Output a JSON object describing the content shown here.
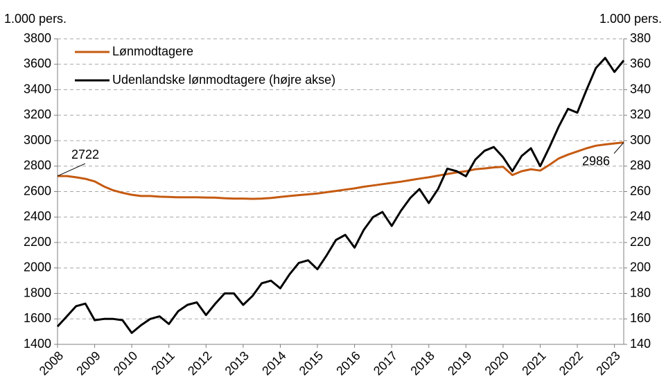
{
  "chart_data": {
    "type": "line",
    "y_label": "1.000 pers.",
    "y2_label": "1.000 pers.",
    "x": [
      2008,
      2008.25,
      2008.5,
      2008.75,
      2009,
      2009.25,
      2009.5,
      2009.75,
      2010,
      2010.25,
      2010.5,
      2010.75,
      2011,
      2011.25,
      2011.5,
      2011.75,
      2012,
      2012.25,
      2012.5,
      2012.75,
      2013,
      2013.25,
      2013.5,
      2013.75,
      2014,
      2014.25,
      2014.5,
      2014.75,
      2015,
      2015.25,
      2015.5,
      2015.75,
      2016,
      2016.25,
      2016.5,
      2016.75,
      2017,
      2017.25,
      2017.5,
      2017.75,
      2018,
      2018.25,
      2018.5,
      2018.75,
      2019,
      2019.25,
      2019.5,
      2019.75,
      2020,
      2020.25,
      2020.5,
      2020.75,
      2021,
      2021.25,
      2021.5,
      2021.75,
      2022,
      2022.25,
      2022.5,
      2022.75,
      2023,
      2023.25
    ],
    "series": [
      {
        "name": "Lønmodtagere",
        "color": "#c55a11",
        "values": [
          2722,
          2722,
          2712,
          2700,
          2680,
          2640,
          2610,
          2590,
          2575,
          2565,
          2565,
          2560,
          2558,
          2555,
          2555,
          2555,
          2553,
          2552,
          2548,
          2545,
          2545,
          2543,
          2545,
          2550,
          2558,
          2565,
          2572,
          2578,
          2585,
          2595,
          2605,
          2615,
          2625,
          2638,
          2648,
          2658,
          2668,
          2678,
          2690,
          2702,
          2712,
          2725,
          2738,
          2750,
          2760,
          2775,
          2782,
          2790,
          2795,
          2730,
          2760,
          2775,
          2765,
          2810,
          2860,
          2890,
          2915,
          2940,
          2960,
          2970,
          2978,
          2986
        ]
      },
      {
        "name": "Udenlandske lønmodtagere (højre akse)",
        "color": "#000000",
        "axis": "y2",
        "values": [
          154,
          162,
          170,
          172,
          159,
          160,
          160,
          159,
          149,
          155,
          160,
          162,
          156,
          166,
          171,
          173,
          163,
          172,
          180,
          180,
          171,
          178,
          188,
          190,
          184,
          195,
          204,
          206,
          199,
          210,
          222,
          226,
          216,
          230,
          240,
          244,
          233,
          245,
          255,
          262,
          251,
          262,
          278,
          276,
          272,
          285,
          292,
          295,
          287,
          276,
          288,
          294,
          280,
          295,
          311,
          325,
          322,
          340,
          357,
          365,
          354,
          363
        ]
      }
    ],
    "annotations": [
      {
        "text": "2722",
        "x": 2008,
        "y": 2722
      },
      {
        "text": "2986",
        "x": 2023.25,
        "y": 2986
      }
    ],
    "xlim": [
      2008,
      2023.25
    ],
    "xticks": [
      2008,
      2009,
      2010,
      2011,
      2012,
      2013,
      2014,
      2015,
      2016,
      2017,
      2018,
      2019,
      2020,
      2021,
      2022,
      2023
    ],
    "ylim": [
      1400,
      3800
    ],
    "yticks": [
      1400,
      1600,
      1800,
      2000,
      2200,
      2400,
      2600,
      2800,
      3000,
      3200,
      3400,
      3600,
      3800
    ],
    "y2lim": [
      140,
      380
    ],
    "y2ticks": [
      140,
      160,
      180,
      200,
      220,
      240,
      260,
      280,
      300,
      320,
      340,
      360,
      380
    ],
    "grid": true,
    "legend": "top-left"
  }
}
